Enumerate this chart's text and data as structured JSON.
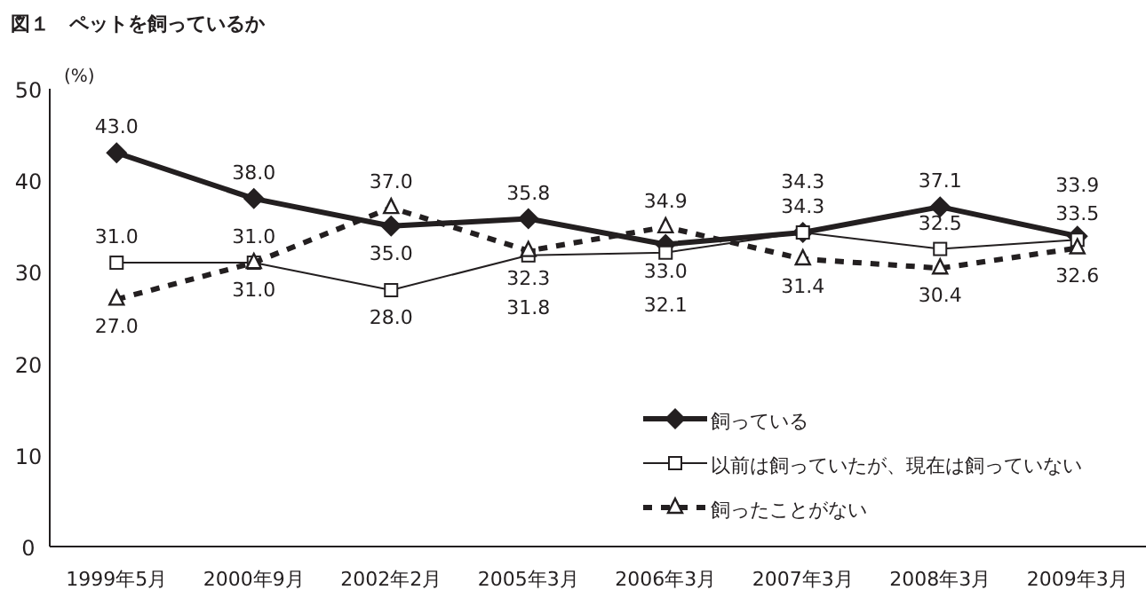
{
  "chart_data": {
    "type": "line",
    "title": "図１　ペットを飼っているか",
    "ylabel": "(%)",
    "categories": [
      "1999年5月",
      "2000年9月",
      "2002年2月",
      "2005年3月",
      "2006年3月",
      "2007年3月",
      "2008年3月",
      "2009年3月"
    ],
    "series": [
      {
        "name": "飼っている",
        "color": "#231f20",
        "marker": "diamond",
        "line_style": "solid",
        "values": [
          43.0,
          38.0,
          35.0,
          35.8,
          33.0,
          34.3,
          37.1,
          33.9
        ],
        "value_labels": [
          "43.0",
          "38.0",
          "35.0",
          "35.8",
          "33.0",
          "34.3",
          "37.1",
          "33.9"
        ]
      },
      {
        "name": "以前は飼っていたが、現在は飼っていない",
        "color": "#231f20",
        "marker": "square",
        "line_style": "solid",
        "values": [
          31.0,
          31.0,
          28.0,
          31.8,
          32.1,
          34.3,
          32.5,
          33.5
        ],
        "value_labels": [
          "31.0",
          "31.0",
          "28.0",
          "31.8",
          "32.1",
          "34.3",
          "32.5",
          "33.5"
        ]
      },
      {
        "name": "飼ったことがない",
        "color": "#231f20",
        "marker": "triangle",
        "line_style": "dashed",
        "values": [
          27.0,
          31.0,
          37.0,
          32.3,
          34.9,
          31.4,
          30.4,
          32.6
        ],
        "value_labels": [
          "27.0",
          "31.0",
          "37.0",
          "32.3",
          "34.9",
          "31.4",
          "30.4",
          "32.6"
        ]
      }
    ],
    "ylim": [
      0,
      50
    ],
    "yticks": [
      0,
      10,
      20,
      30,
      40,
      50
    ],
    "grid": false,
    "legend": "bottom right"
  }
}
